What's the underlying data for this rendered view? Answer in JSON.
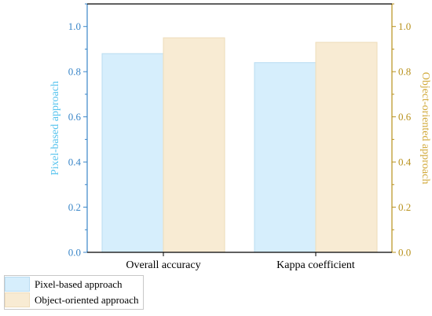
{
  "chart_data": {
    "type": "bar",
    "categories": [
      "Overall accuracy",
      "Kappa coefficient"
    ],
    "series": [
      {
        "name": "Pixel-based approach",
        "values": [
          0.88,
          0.84
        ],
        "axis": "left"
      },
      {
        "name": "Object-oriented approach",
        "values": [
          0.95,
          0.93
        ],
        "axis": "right"
      }
    ],
    "ylabel_left": "Pixel-based approach",
    "ylabel_right": "Object-oriented approach",
    "ylim": [
      0,
      1.1
    ],
    "yticks": [
      "0.0",
      "0.2",
      "0.4",
      "0.6",
      "0.8",
      "1.0"
    ],
    "ytick_values": [
      0,
      0.2,
      0.4,
      0.6,
      0.8,
      1.0
    ],
    "grid": false,
    "legend_position": "bottom-left",
    "colors": {
      "pixel_fill": "#d6eefc",
      "pixel_edge": "#b9dcf1",
      "object_fill": "#f8ebd3",
      "object_edge": "#eedcba",
      "left_axis": "#3a86c8",
      "left_label": "#55c3ee",
      "right_axis": "#b8911c",
      "right_label": "#d1a93a",
      "frame": "#000000"
    }
  }
}
